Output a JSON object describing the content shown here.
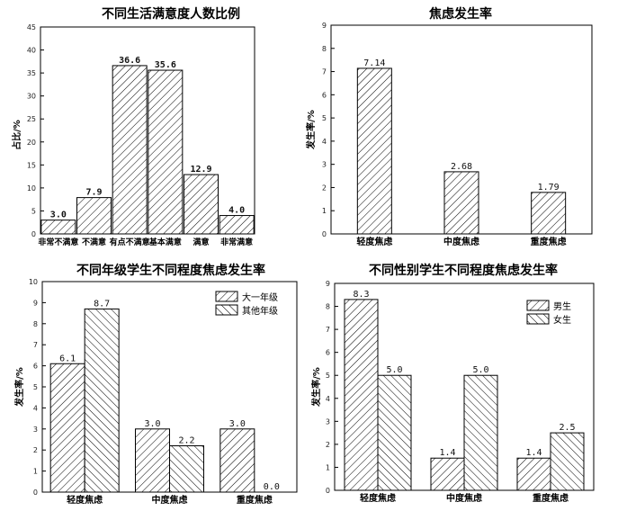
{
  "chart_data": [
    {
      "type": "bar",
      "title": "不同生活满意度人数比例",
      "ylabel": "占比/%",
      "categories": [
        "非常不满意",
        "不满意",
        "有点不满意",
        "基本满意",
        "满意",
        "非常满意"
      ],
      "series": [
        {
          "values": [
            3.0,
            7.9,
            36.6,
            35.6,
            12.9,
            4.0
          ]
        }
      ],
      "labels": [
        [
          "3.0",
          "7.9",
          "36.6",
          "35.6",
          "12.9",
          "4.0"
        ]
      ],
      "ylim": [
        0,
        45
      ],
      "yticks": [
        0,
        5,
        10,
        15,
        20,
        25,
        30,
        35,
        40,
        45
      ],
      "grid": false
    },
    {
      "type": "bar",
      "title": "焦虑发生率",
      "ylabel": "发生率/%",
      "categories": [
        "轻度焦虑",
        "中度焦虑",
        "重度焦虑"
      ],
      "series": [
        {
          "values": [
            7.14,
            2.68,
            1.79
          ]
        }
      ],
      "labels": [
        [
          "7.14",
          "2.68",
          "1.79"
        ]
      ],
      "ylim": [
        0,
        9
      ],
      "yticks": [
        0,
        1,
        2,
        3,
        4,
        5,
        6,
        7,
        8,
        9
      ],
      "grid": false
    },
    {
      "type": "bar",
      "title": "不同年级学生不同程度焦虑发生率",
      "ylabel": "发生率/%",
      "categories": [
        "轻度焦虑",
        "中度焦虑",
        "重度焦虑"
      ],
      "series": [
        {
          "name": "大一年级",
          "values": [
            6.1,
            3.0,
            3.0
          ]
        },
        {
          "name": "其他年级",
          "values": [
            8.7,
            2.2,
            0.0
          ]
        }
      ],
      "labels": [
        [
          "6.1",
          "3.0",
          "3.0"
        ],
        [
          "8.7",
          "2.2",
          "0.0"
        ]
      ],
      "ylim": [
        0,
        10
      ],
      "yticks": [
        0,
        1,
        2,
        3,
        4,
        5,
        6,
        7,
        8,
        9,
        10
      ],
      "legend": "top-right",
      "grid": false
    },
    {
      "type": "bar",
      "title": "不同性别学生不同程度焦虑发生率",
      "ylabel": "发生率/%",
      "categories": [
        "轻度焦虑",
        "中度焦虑",
        "重度焦虑"
      ],
      "series": [
        {
          "name": "男生",
          "values": [
            8.3,
            1.4,
            1.4
          ]
        },
        {
          "name": "女生",
          "values": [
            5.0,
            5.0,
            2.5
          ]
        }
      ],
      "labels": [
        [
          "8.3",
          "1.4",
          "1.4"
        ],
        [
          "5.0",
          "5.0",
          "2.5"
        ]
      ],
      "ylim": [
        0,
        9
      ],
      "yticks": [
        0,
        1,
        2,
        3,
        4,
        5,
        6,
        7,
        8,
        9
      ],
      "legend": "top-right",
      "grid": false
    }
  ]
}
